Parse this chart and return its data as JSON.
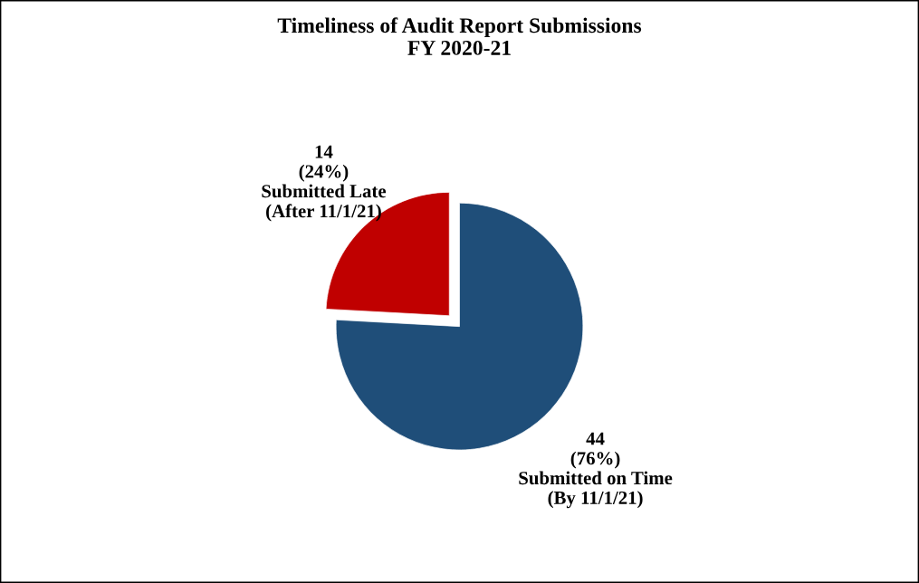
{
  "chart_data": {
    "type": "pie",
    "title": "Timeliness of Audit Report Submissions\nFY 2020-21",
    "categories": [
      "Submitted on Time\n(By 11/1/21)",
      "Submitted Late\n(After 11/1/21)"
    ],
    "values": [
      44,
      14
    ],
    "value_labels": [
      "44\n(76%)",
      "14\n(24%)"
    ],
    "colors": [
      "#1f4e79",
      "#c00000"
    ],
    "legend": false
  }
}
